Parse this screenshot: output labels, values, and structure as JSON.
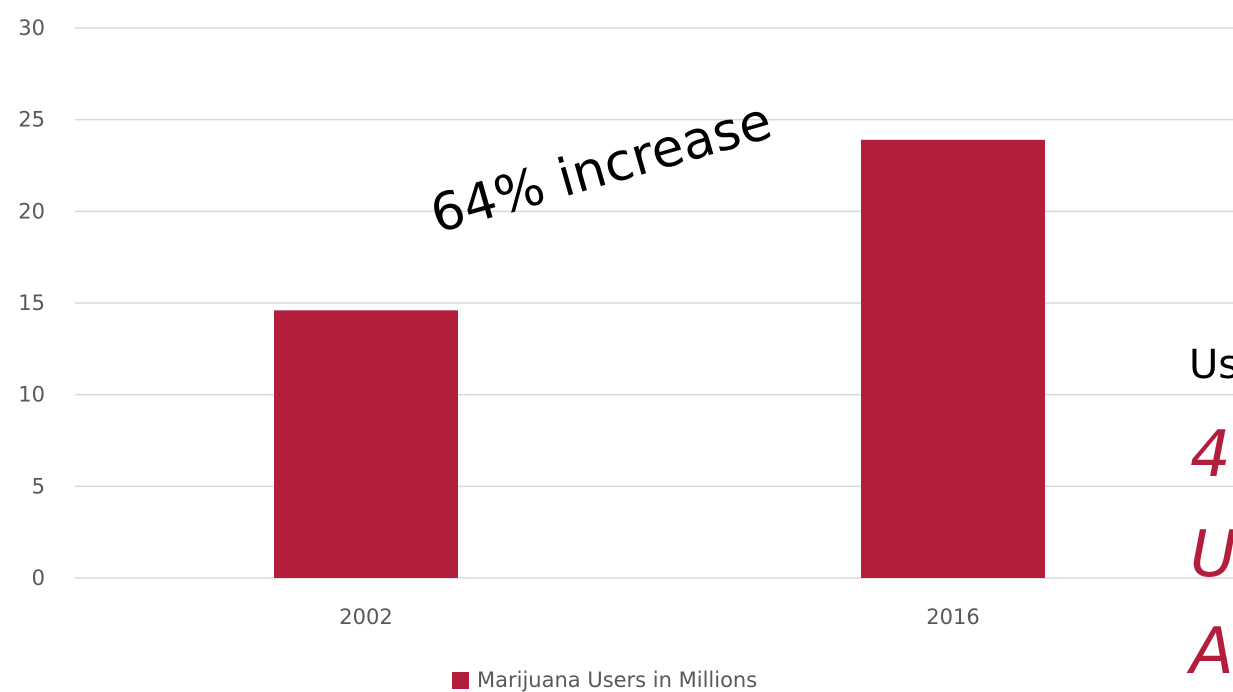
{
  "chart_data": {
    "type": "bar",
    "categories": [
      "2002",
      "2016"
    ],
    "series": [
      {
        "name": "Marijuana Users in Millions",
        "values": [
          14.6,
          23.9
        ]
      }
    ],
    "ylim": [
      0,
      30
    ],
    "yticks": [
      "0",
      "5",
      "10",
      "15",
      "20",
      "25",
      "30"
    ],
    "grid": true,
    "legend_position": "bottom",
    "annotation": "64% increase"
  },
  "colors": {
    "bar": "#b31e3c",
    "grid": "#d9d9d9",
    "text": "#595959"
  },
  "side_text": {
    "label": "Us",
    "line1": "4",
    "line2": "U",
    "line3": "A"
  }
}
